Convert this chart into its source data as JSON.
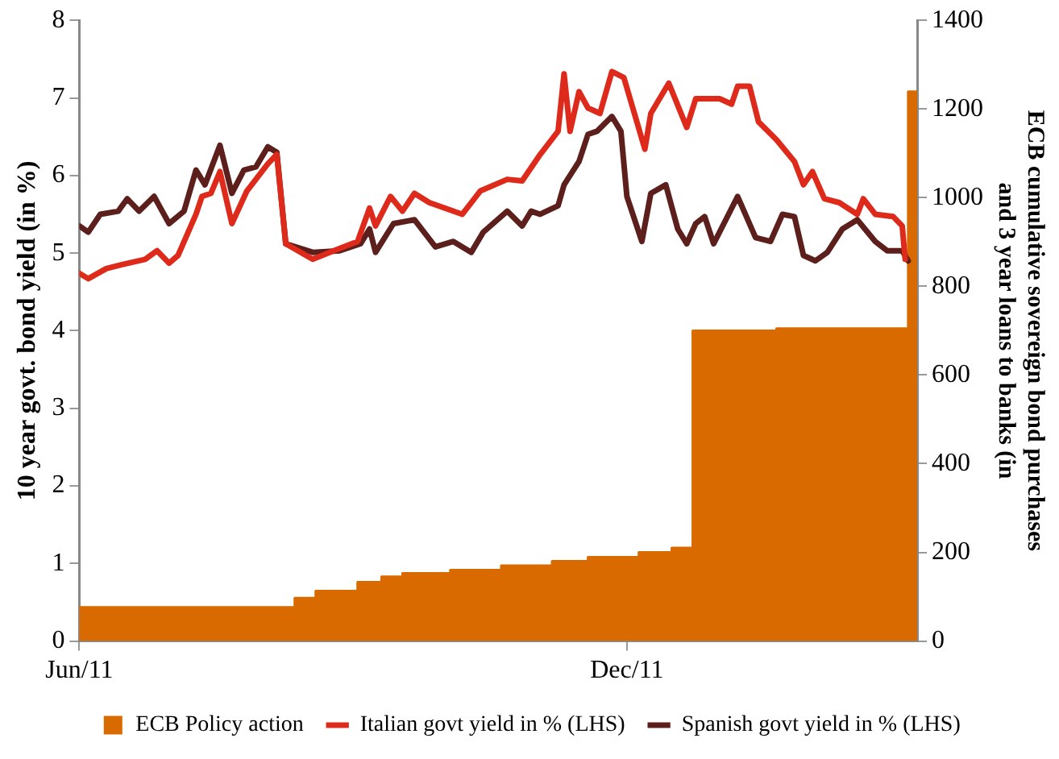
{
  "chart_data": {
    "type": "line",
    "ylabel": "10 year govt. bond yield (in %)",
    "y2label": "ECB cumulative sovereign bond purchases and 3 year loans to banks (in",
    "xlim": [
      "2011-06-01",
      "2012-03-07"
    ],
    "xticks": [
      {
        "value": "2011-06-01",
        "label": "Jun/11"
      },
      {
        "value": "2011-12-01",
        "label": "Dec/11"
      }
    ],
    "ylim": [
      0,
      8
    ],
    "yticks": [
      0,
      1,
      2,
      3,
      4,
      5,
      6,
      7,
      8
    ],
    "y2lim": [
      0,
      1400
    ],
    "y2ticks": [
      0,
      200,
      400,
      600,
      800,
      1000,
      1200,
      1400
    ],
    "grid": false,
    "legend": "bottom",
    "marker": "none",
    "line_style": "solid",
    "series": [
      {
        "name": "ECB Policy action",
        "type": "area",
        "axis": "y2",
        "color": "#d96a00",
        "x": [
          "2011-06-01",
          "2011-08-12",
          "2011-08-12",
          "2011-08-19",
          "2011-08-19",
          "2011-09-02",
          "2011-09-02",
          "2011-09-10",
          "2011-09-10",
          "2011-09-17",
          "2011-09-17",
          "2011-10-03",
          "2011-10-03",
          "2011-10-20",
          "2011-10-20",
          "2011-11-06",
          "2011-11-06",
          "2011-11-18",
          "2011-11-18",
          "2011-12-05",
          "2011-12-05",
          "2011-12-16",
          "2011-12-16",
          "2011-12-23",
          "2011-12-23",
          "2012-01-20",
          "2012-01-20",
          "2012-03-04",
          "2012-03-04",
          "2012-03-07"
        ],
        "values": [
          76,
          76,
          97,
          97,
          113,
          113,
          133,
          133,
          145,
          145,
          153,
          153,
          160,
          160,
          170,
          170,
          180,
          180,
          189,
          189,
          200,
          200,
          210,
          210,
          700,
          700,
          705,
          705,
          1239,
          1239
        ]
      },
      {
        "name": "Italian govt yield in % (LHS)",
        "color": "#dd2a1b",
        "x": [
          "2011-06-01",
          "2011-06-04",
          "2011-06-10",
          "2011-06-15",
          "2011-06-23",
          "2011-06-27",
          "2011-07-01",
          "2011-07-04",
          "2011-07-10",
          "2011-07-12",
          "2011-07-15",
          "2011-07-18",
          "2011-07-22",
          "2011-07-27",
          "2011-08-03",
          "2011-08-06",
          "2011-08-09",
          "2011-08-18",
          "2011-08-25",
          "2011-09-02",
          "2011-09-06",
          "2011-09-08",
          "2011-09-13",
          "2011-09-17",
          "2011-09-21",
          "2011-09-26",
          "2011-10-07",
          "2011-10-13",
          "2011-10-22",
          "2011-10-27",
          "2011-11-02",
          "2011-11-08",
          "2011-11-10",
          "2011-11-12",
          "2011-11-15",
          "2011-11-18",
          "2011-11-22",
          "2011-11-26",
          "2011-11-30",
          "2011-12-07",
          "2011-12-09",
          "2011-12-15",
          "2011-12-21",
          "2011-12-24",
          "2012-01-01",
          "2012-01-05",
          "2012-01-07",
          "2012-01-11",
          "2012-01-14",
          "2012-01-20",
          "2012-01-26",
          "2012-01-29",
          "2012-02-01",
          "2012-02-05",
          "2012-02-10",
          "2012-02-16",
          "2012-02-18",
          "2012-02-22",
          "2012-02-28",
          "2012-03-02",
          "2012-03-03"
        ],
        "values": [
          4.74,
          4.67,
          4.8,
          4.85,
          4.92,
          5.03,
          4.87,
          4.97,
          5.5,
          5.73,
          5.77,
          6.05,
          5.38,
          5.8,
          6.15,
          6.27,
          5.12,
          4.92,
          5.03,
          5.15,
          5.58,
          5.35,
          5.73,
          5.54,
          5.77,
          5.65,
          5.5,
          5.8,
          5.95,
          5.93,
          6.27,
          6.57,
          7.31,
          6.57,
          7.08,
          6.87,
          6.8,
          7.34,
          7.26,
          6.34,
          6.8,
          7.19,
          6.62,
          6.99,
          6.99,
          6.92,
          7.15,
          7.15,
          6.69,
          6.46,
          6.18,
          5.88,
          6.05,
          5.7,
          5.65,
          5.5,
          5.7,
          5.5,
          5.47,
          5.35,
          4.92
        ]
      },
      {
        "name": "Spanish govt yield in % (LHS)",
        "color": "#5c1f1c",
        "x": [
          "2011-06-01",
          "2011-06-04",
          "2011-06-08",
          "2011-06-14",
          "2011-06-17",
          "2011-06-21",
          "2011-06-26",
          "2011-07-01",
          "2011-07-06",
          "2011-07-10",
          "2011-07-13",
          "2011-07-18",
          "2011-07-22",
          "2011-07-26",
          "2011-07-30",
          "2011-08-03",
          "2011-08-06",
          "2011-08-09",
          "2011-08-18",
          "2011-08-27",
          "2011-09-03",
          "2011-09-06",
          "2011-09-08",
          "2011-09-14",
          "2011-09-21",
          "2011-09-28",
          "2011-10-04",
          "2011-10-10",
          "2011-10-14",
          "2011-10-22",
          "2011-10-27",
          "2011-10-30",
          "2011-11-02",
          "2011-11-08",
          "2011-11-10",
          "2011-11-15",
          "2011-11-18",
          "2011-11-21",
          "2011-11-26",
          "2011-11-29",
          "2011-12-01",
          "2011-12-06",
          "2011-12-09",
          "2011-12-14",
          "2011-12-18",
          "2011-12-21",
          "2011-12-24",
          "2011-12-27",
          "2011-12-30",
          "2012-01-07",
          "2012-01-13",
          "2012-01-18",
          "2012-01-22",
          "2012-01-26",
          "2012-01-29",
          "2012-02-02",
          "2012-02-06",
          "2012-02-11",
          "2012-02-16",
          "2012-02-22",
          "2012-02-26",
          "2012-03-02",
          "2012-03-04"
        ],
        "values": [
          5.35,
          5.27,
          5.5,
          5.54,
          5.7,
          5.54,
          5.73,
          5.38,
          5.54,
          6.07,
          5.88,
          6.39,
          5.77,
          6.07,
          6.11,
          6.37,
          6.3,
          5.12,
          5.01,
          5.03,
          5.12,
          5.31,
          5.01,
          5.38,
          5.43,
          5.08,
          5.15,
          5.01,
          5.27,
          5.54,
          5.35,
          5.54,
          5.5,
          5.61,
          5.88,
          6.18,
          6.53,
          6.57,
          6.76,
          6.57,
          5.73,
          5.15,
          5.77,
          5.88,
          5.31,
          5.12,
          5.38,
          5.47,
          5.12,
          5.73,
          5.2,
          5.15,
          5.5,
          5.47,
          4.97,
          4.9,
          5.01,
          5.31,
          5.43,
          5.15,
          5.03,
          5.03,
          4.9
        ]
      }
    ]
  }
}
